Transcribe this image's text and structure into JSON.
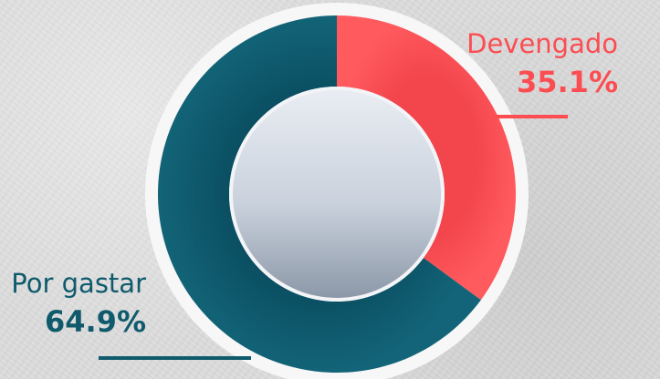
{
  "chart_data": {
    "type": "pie",
    "categories": [
      "Devengado",
      "Por gastar"
    ],
    "values": [
      35.1,
      64.9
    ],
    "labels": [
      "35.1%",
      "64.9%"
    ],
    "colors": [
      "#fb4d52",
      "#0f5a6c"
    ],
    "donut": true
  }
}
